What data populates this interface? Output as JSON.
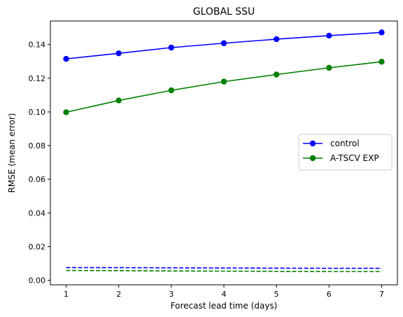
{
  "chart_data": {
    "type": "line",
    "title": "GLOBAL SSU",
    "xlabel": "Forecast lead time (days)",
    "ylabel": "RMSE (mean error)",
    "x": [
      1,
      2,
      3,
      4,
      5,
      6,
      7
    ],
    "x_ticks": [
      "1",
      "2",
      "3",
      "4",
      "5",
      "6",
      "7"
    ],
    "xlim": [
      0.7,
      7.3
    ],
    "ylim": [
      -0.0027,
      0.154
    ],
    "y_ticks": [
      0.0,
      0.02,
      0.04,
      0.06,
      0.08,
      0.1,
      0.12,
      0.14
    ],
    "y_tick_labels": [
      "0.00",
      "0.02",
      "0.04",
      "0.06",
      "0.08",
      "0.10",
      "0.12",
      "0.14"
    ],
    "grid": false,
    "legend_position": "center-right",
    "series": [
      {
        "name": "control",
        "color": "#0000ff",
        "style": "solid",
        "marker": "circle",
        "values": [
          0.1315,
          0.1348,
          0.1382,
          0.1408,
          0.1432,
          0.1453,
          0.1472
        ]
      },
      {
        "name": "A-TSCV EXP",
        "color": "#008000",
        "style": "solid",
        "marker": "circle",
        "values": [
          0.0998,
          0.1068,
          0.1128,
          0.118,
          0.1222,
          0.1262,
          0.1298
        ]
      },
      {
        "color": "#0000ff",
        "style": "dashed",
        "marker": "none",
        "values": [
          0.0075,
          0.0075,
          0.0074,
          0.0073,
          0.0072,
          0.0071,
          0.0071
        ]
      },
      {
        "color": "#008000",
        "style": "dashed",
        "marker": "none",
        "values": [
          0.0058,
          0.0057,
          0.0055,
          0.0054,
          0.0053,
          0.0052,
          0.0052
        ]
      }
    ]
  }
}
